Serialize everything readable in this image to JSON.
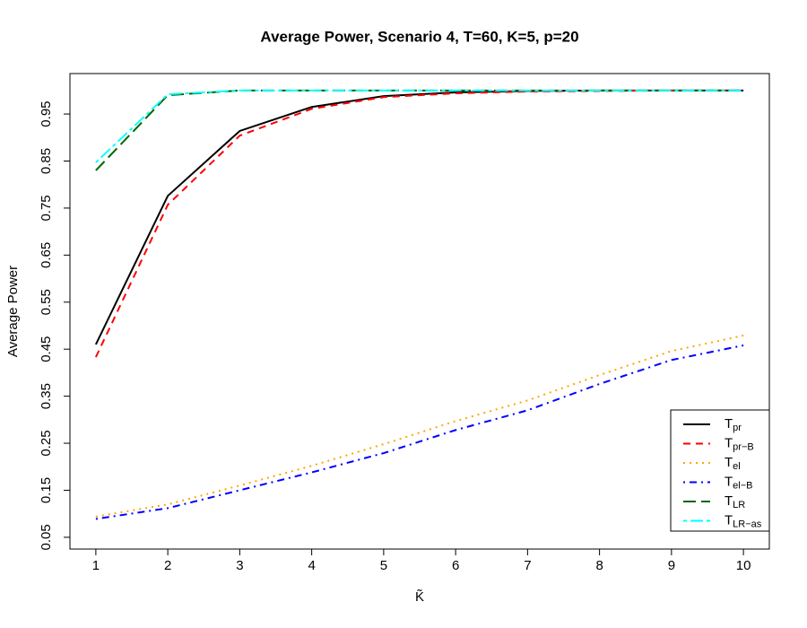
{
  "chart_data": {
    "type": "line",
    "title": "Average Power, Scenario 4, T=60, K=5, p=20",
    "x_label": "K̃",
    "y_label": "Average Power",
    "x": [
      1,
      2,
      3,
      4,
      5,
      6,
      7,
      8,
      9,
      10
    ],
    "xlim": [
      0.64,
      10.36
    ],
    "xticks": [
      1,
      2,
      3,
      4,
      5,
      6,
      7,
      8,
      9,
      10
    ],
    "ylim": [
      0.025,
      1.036
    ],
    "yticks": [
      0.05,
      0.15,
      0.25,
      0.35,
      0.45,
      0.55,
      0.65,
      0.75,
      0.85,
      0.95
    ],
    "legend": "bottom-right",
    "series": [
      {
        "name": "Tpr",
        "color": "#000000",
        "dash": "none",
        "values": [
          0.46,
          0.776,
          0.914,
          0.965,
          0.988,
          0.996,
          0.999,
          1.0,
          1.0,
          1.0
        ]
      },
      {
        "name": "Tpr−B",
        "color": "#ff0000",
        "dash": "8,6",
        "values": [
          0.433,
          0.757,
          0.904,
          0.961,
          0.986,
          0.994,
          0.998,
          0.999,
          1.0,
          1.0
        ]
      },
      {
        "name": "Tel",
        "color": "#ffa500",
        "dash": "2,5",
        "values": [
          0.094,
          0.12,
          0.16,
          0.202,
          0.248,
          0.297,
          0.341,
          0.395,
          0.446,
          0.479
        ]
      },
      {
        "name": "Tel−B",
        "color": "#0000ff",
        "dash": "2,5,8,5",
        "values": [
          0.089,
          0.112,
          0.15,
          0.188,
          0.229,
          0.278,
          0.32,
          0.376,
          0.427,
          0.458
        ]
      },
      {
        "name": "TLR",
        "color": "#006400",
        "dash": "14,6",
        "values": [
          0.83,
          0.99,
          1.0,
          1.0,
          1.0,
          1.0,
          1.0,
          1.0,
          1.0,
          1.0
        ]
      },
      {
        "name": "TLR−as",
        "color": "#00ffff",
        "dash": "4,4,14,4",
        "values": [
          0.847,
          0.992,
          1.0,
          1.0,
          1.0,
          1.0,
          1.0,
          1.0,
          1.0,
          1.0
        ]
      }
    ]
  }
}
